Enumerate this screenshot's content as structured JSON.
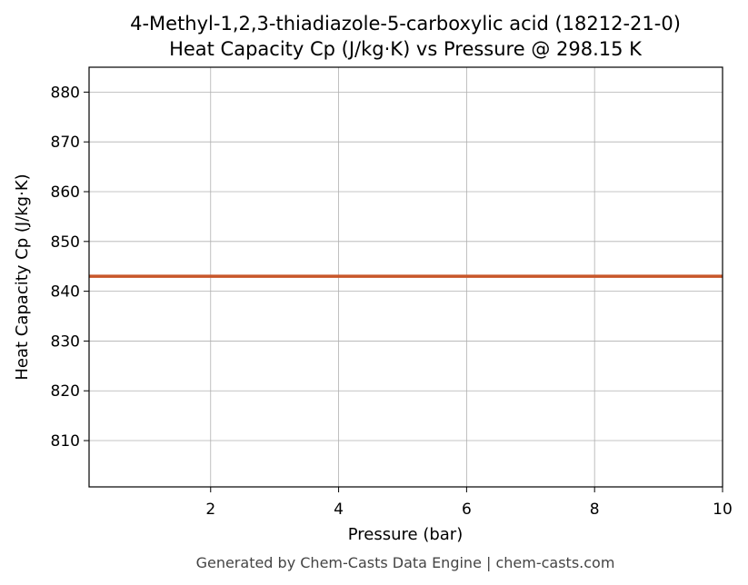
{
  "chart_data": {
    "type": "line",
    "title": "4-Methyl-1,2,3-thiadiazole-5-carboxylic acid (18212-21-0)",
    "subtitle": "Heat Capacity Cp (J/kg·K) vs Pressure @ 298.15 K",
    "x_label": "Pressure (bar)",
    "y_label": "Heat Capacity Cp (J/kg·K)",
    "x": [
      0.1,
      10
    ],
    "series": [
      {
        "color": "#c8562a",
        "values": [
          843,
          843
        ]
      }
    ],
    "xlim": [
      0.1,
      10
    ],
    "xticks": [
      2,
      4,
      6,
      8,
      10
    ],
    "ylim": [
      800.7,
      885
    ],
    "yticks": [
      810,
      820,
      830,
      840,
      850,
      860,
      870,
      880
    ],
    "grid": true
  },
  "footer": "Generated by Chem-Casts Data Engine | chem-casts.com"
}
